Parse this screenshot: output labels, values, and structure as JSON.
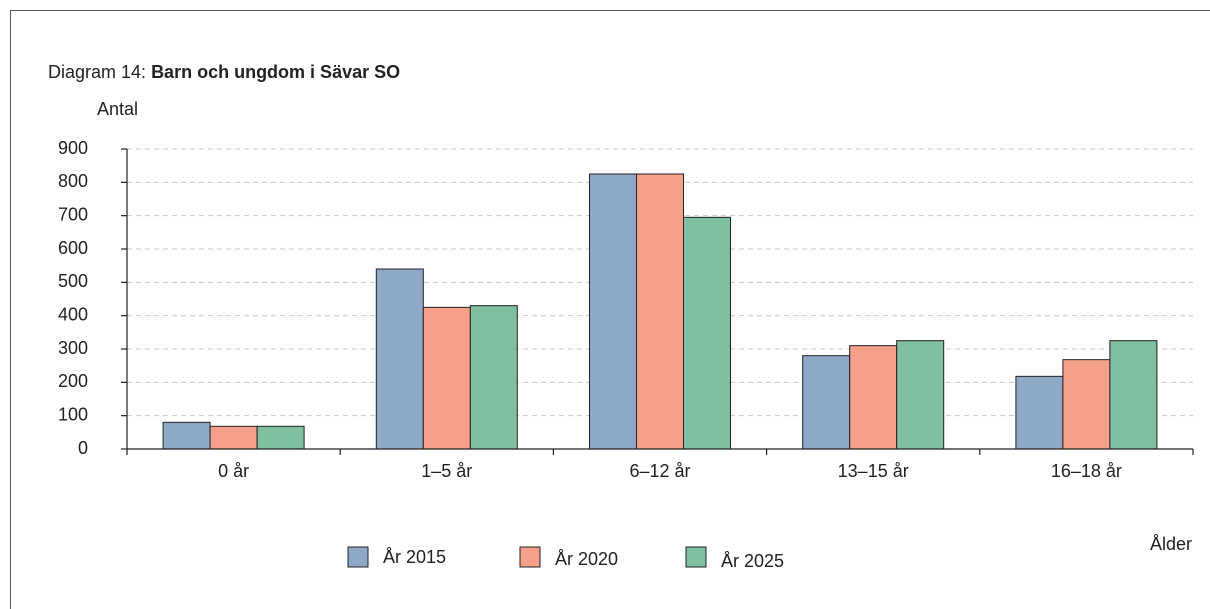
{
  "chart_data": {
    "type": "bar",
    "title_label": "Diagram 14:",
    "title": "Barn och ungdom i Sävar SO",
    "y_label": "Antal",
    "x_label": "Ålder",
    "categories": [
      "0 år",
      "1–5 år",
      "6–12 år",
      "13–15 år",
      "16–18 år"
    ],
    "series": [
      {
        "name": "År 2015",
        "color": "#8ea9c8",
        "values": [
          80,
          540,
          825,
          280,
          218
        ]
      },
      {
        "name": "År 2020",
        "color": "#f4a08a",
        "values": [
          68,
          425,
          825,
          310,
          268
        ]
      },
      {
        "name": "År 2025",
        "color": "#80bf9f",
        "values": [
          68,
          430,
          695,
          325,
          325
        ]
      }
    ],
    "ylim": [
      0,
      900
    ],
    "yticks": [
      0,
      100,
      200,
      300,
      400,
      500,
      600,
      700,
      800,
      900
    ],
    "grid": true,
    "legend": "bottom"
  }
}
